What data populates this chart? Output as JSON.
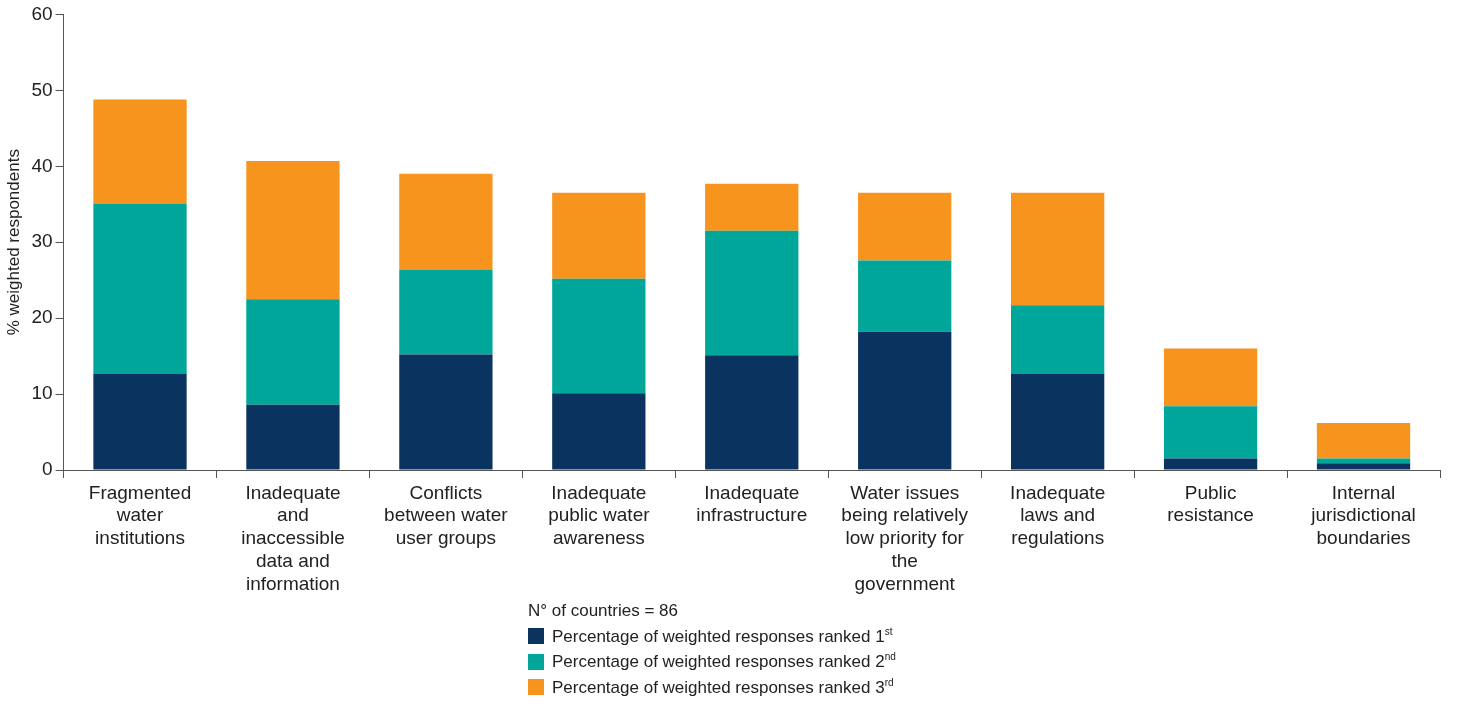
{
  "chart_data": {
    "type": "bar",
    "stacked": true,
    "ylabel": "% weighted respondents",
    "legend_title": "N° of countries = 86",
    "legend": "bottom",
    "categories": [
      "Fragmented water institutions",
      "Inadequate and inaccessible data and information",
      "Conflicts between water user groups",
      "Inadequate public water awareness",
      "Inadequate infrastructure",
      "Water issues being relatively low priority for the government",
      "Inadequate laws and regulations",
      "Public resistance",
      "Internal jurisdictional boundaries"
    ],
    "series": [
      {
        "name": "Percentage of weighted responses ranked 1$^{st}$",
        "color": "#0b3360",
        "values": [
          12.7,
          8.6,
          15.2,
          10.1,
          15.1,
          18.2,
          12.7,
          1.5,
          0.9
        ]
      },
      {
        "name": "Percentage of weighted responses ranked 2$^{nd}$",
        "color": "#00a69a",
        "values": [
          22.4,
          13.9,
          11.2,
          15.1,
          16.4,
          9.4,
          9.0,
          6.9,
          0.6
        ]
      },
      {
        "name": "Percentage of weighted responses ranked 3$^{rd}$",
        "color": "#f7941d",
        "values": [
          13.7,
          18.2,
          12.6,
          11.3,
          6.2,
          8.9,
          14.8,
          7.6,
          4.7
        ]
      }
    ],
    "ylim": [
      0,
      60
    ],
    "yticks": [
      0,
      10,
      20,
      30,
      40,
      50,
      60
    ],
    "grid": false
  }
}
